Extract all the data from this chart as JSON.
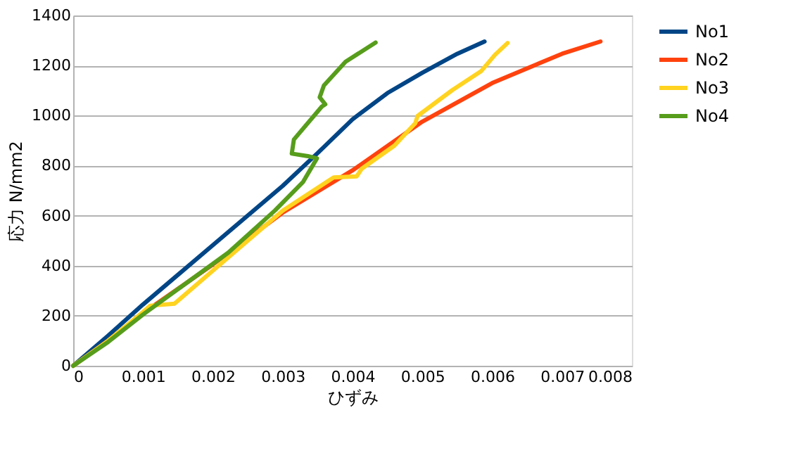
{
  "chart_data": {
    "type": "line",
    "xlabel": "ひずみ",
    "ylabel": "応力 N/mm2",
    "xlim": [
      0,
      0.008
    ],
    "xticks": [
      0,
      0.001,
      0.002,
      0.003,
      0.004,
      0.005,
      0.006,
      0.007,
      0.008
    ],
    "ylim": [
      0,
      1400
    ],
    "yticks": [
      0,
      200,
      400,
      600,
      800,
      {
        "value": 1000,
        "label": "1000"
      },
      {
        "value": 1200,
        "label": "1200"
      },
      {
        "value": 1400,
        "label": "1400"
      }
    ],
    "grid": "y",
    "legend": "right",
    "marker": "none",
    "line_style": "solid",
    "series": [
      {
        "name": "No1",
        "color": "#004586",
        "x": [
          0,
          0.0005,
          0.001,
          0.002,
          0.003,
          0.0035,
          0.004,
          0.0045,
          0.005,
          0.0055,
          0.00589
        ],
        "values": [
          0,
          120,
          245,
          482,
          719,
          850,
          985,
          1090,
          1171,
          1247,
          1296
        ]
      },
      {
        "name": "No2",
        "color": "#ff420e",
        "x": [
          0,
          0.0005,
          0.001,
          0.002,
          0.003,
          0.004,
          0.005,
          0.006,
          0.007,
          0.00755
        ],
        "values": [
          0,
          100,
          210,
          405,
          612,
          781,
          976,
          1130,
          1247,
          1296
        ]
      },
      {
        "name": "No3",
        "color": "#ffd320",
        "x": [
          0,
          0.0005,
          0.001,
          0.0011,
          0.00145,
          0.002,
          0.003,
          0.00373,
          0.00406,
          0.00413,
          0.0046,
          0.0049,
          0.00493,
          0.00543,
          0.00584,
          0.00604,
          0.00622
        ],
        "values": [
          0,
          100,
          215,
          240,
          248,
          380,
          620,
          753,
          757,
          787,
          880,
          970,
          998,
          1102,
          1177,
          1243,
          1290
        ]
      },
      {
        "name": "No4",
        "color": "#579d1c",
        "x": [
          0,
          0.0005,
          0.001,
          0.00222,
          0.00289,
          0.00329,
          0.00349,
          0.00336,
          0.00313,
          0.00316,
          0.00356,
          0.00361,
          0.00353,
          0.00359,
          0.0039,
          0.00433
        ],
        "values": [
          0,
          95,
          205,
          452,
          621,
          734,
          829,
          838,
          848,
          904,
          1036,
          1045,
          1073,
          1120,
          1215,
          1292
        ]
      }
    ]
  }
}
